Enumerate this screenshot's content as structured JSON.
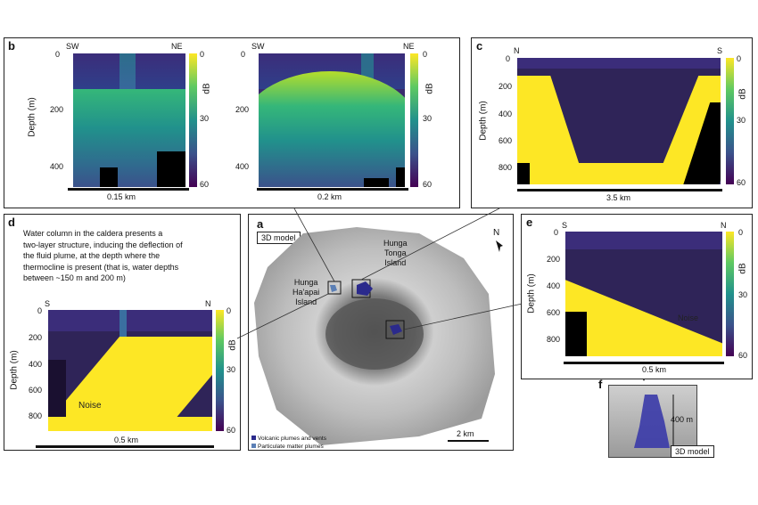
{
  "panel_b": {
    "label": "b",
    "left_plot": {
      "dir_left": "SW",
      "dir_right": "NE",
      "scale": "0.15 km"
    },
    "right_plot": {
      "dir_left": "SW",
      "dir_right": "NE",
      "scale": "0.2 km"
    },
    "ylabel": "Depth (m)",
    "yticks": [
      "0",
      "200",
      "400"
    ],
    "cbar_label": "dB",
    "cbar_ticks": [
      "0",
      "30",
      "60"
    ]
  },
  "panel_c": {
    "label": "c",
    "dir_left": "N",
    "dir_right": "S",
    "ylabel": "Depth (m)",
    "yticks": [
      "0",
      "200",
      "400",
      "600",
      "800"
    ],
    "cbar_label": "dB",
    "cbar_ticks": [
      "0",
      "30",
      "60"
    ],
    "scale": "3.5 km"
  },
  "panel_d": {
    "label": "d",
    "note_lines": [
      "Water column in the caldera presents a",
      "two-layer structure, inducing the deflection of",
      "the fluid plume, at the depth where the",
      "thermocline is present (that is, water depths",
      "between ~150 m and 200 m)"
    ],
    "dir_left": "S",
    "dir_right": "N",
    "ylabel": "Depth (m)",
    "yticks": [
      "0",
      "200",
      "400",
      "600",
      "800"
    ],
    "cbar_label": "dB",
    "cbar_ticks": [
      "0",
      "30",
      "60"
    ],
    "noise": "Noise",
    "scale": "0.5 km"
  },
  "panel_a": {
    "label": "a",
    "model_tag": "3D model",
    "north": "N",
    "island_tonga": [
      "Hunga",
      "Tonga",
      "Island"
    ],
    "island_haapai": [
      "Hunga",
      "Ha'apai",
      "Island"
    ],
    "legend": [
      "Volcanic plumes and vents",
      "Particulate matter plumes"
    ],
    "legend_colors": [
      "#2b2a8c",
      "#5b7fb5"
    ],
    "scale": "2 km"
  },
  "panel_e": {
    "label": "e",
    "dir_left": "S",
    "dir_right": "N",
    "ylabel": "Depth (m)",
    "yticks": [
      "0",
      "200",
      "400",
      "600",
      "800"
    ],
    "cbar_label": "dB",
    "cbar_ticks": [
      "0",
      "30",
      "60"
    ],
    "noise": "Noise",
    "scale": "0.5 km"
  },
  "panel_f": {
    "label": "f",
    "height": "400 m",
    "model_tag": "3D model"
  }
}
